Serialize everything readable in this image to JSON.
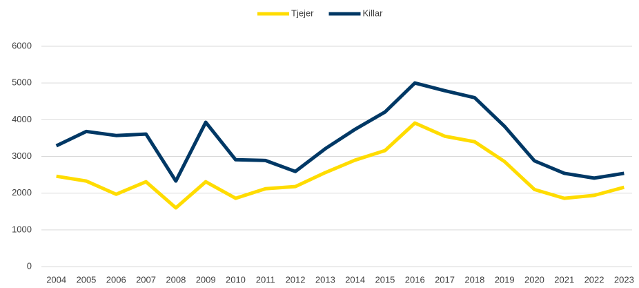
{
  "chart_data": {
    "type": "line",
    "categories": [
      "2004",
      "2005",
      "2006",
      "2007",
      "2008",
      "2009",
      "2010",
      "2011",
      "2012",
      "2013",
      "2014",
      "2015",
      "2016",
      "2017",
      "2018",
      "2019",
      "2020",
      "2021",
      "2022",
      "2023"
    ],
    "series": [
      {
        "name": "Tjejer",
        "color": "#ffdc00",
        "values": [
          2460,
          2330,
          1970,
          2310,
          1600,
          2310,
          1860,
          2120,
          2180,
          2560,
          2900,
          3160,
          3910,
          3550,
          3400,
          2860,
          2100,
          1860,
          1940,
          2160
        ]
      },
      {
        "name": "Killar",
        "color": "#003865",
        "values": [
          3290,
          3680,
          3570,
          3610,
          2330,
          3930,
          2910,
          2890,
          2590,
          3210,
          3740,
          4210,
          5000,
          4790,
          4600,
          3820,
          2880,
          2540,
          2410,
          2540
        ]
      }
    ],
    "ylim": [
      0,
      6000
    ],
    "yticks": [
      0,
      1000,
      2000,
      3000,
      4000,
      5000,
      6000
    ],
    "grid": true,
    "legend": "top"
  }
}
